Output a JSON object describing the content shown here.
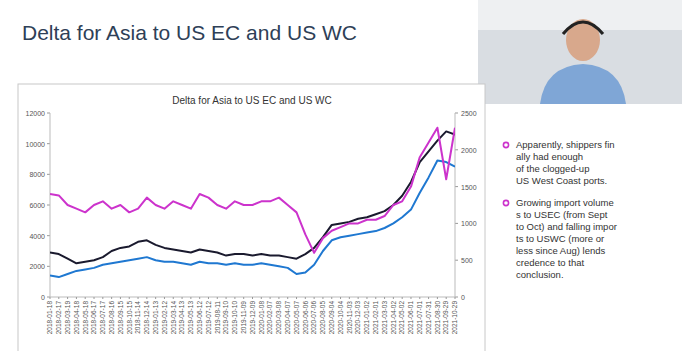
{
  "slide": {
    "title": "Delta for Asia to US EC and US WC",
    "bullets": [
      [
        "Apparently, shippers fin",
        "ally had enough",
        "of the clogged-up",
        "US West Coast ports."
      ],
      [
        "Growing import volume",
        "s to USEC (from Sept",
        "to Oct) and falling impor",
        "ts to USWC (more or",
        "less since Aug) lends",
        "credence to that",
        "conclusion."
      ]
    ]
  },
  "chart_data": {
    "type": "line",
    "title": "Delta for Asia to US EC and US WC",
    "categories": [
      "2018-01-18",
      "2018-02-17",
      "2018-03-19",
      "2018-04-18",
      "2018-05-18",
      "2018-06-17",
      "2018-07-17",
      "2018-08-16",
      "2018-09-15",
      "2018-10-15",
      "2018-11-14",
      "2018-12-14",
      "2019-01-13",
      "2019-02-12",
      "2019-03-14",
      "2019-04-13",
      "2019-05-13",
      "2019-06-12",
      "2019-07-12",
      "2019-08-11",
      "2019-09-10",
      "2019-10-10",
      "2019-11-09",
      "2019-12-09",
      "2020-01-08",
      "2020-02-07",
      "2020-03-08",
      "2020-04-07",
      "2020-05-07",
      "2020-06-06",
      "2020-07-06",
      "2020-08-05",
      "2020-09-04",
      "2020-10-04",
      "2020-11-03",
      "2020-12-03",
      "2021-01-02",
      "2021-02-01",
      "2021-03-03",
      "2021-04-02",
      "2021-05-02",
      "2021-06-01",
      "2021-07-01",
      "2021-07-31",
      "2021-08-30",
      "2021-09-29",
      "2021-10-29"
    ],
    "series": [
      {
        "color": "#1a1a2e",
        "values": [
          2900,
          2800,
          2500,
          2200,
          2300,
          2400,
          2600,
          3000,
          3200,
          3300,
          3600,
          3700,
          3400,
          3200,
          3100,
          3000,
          2900,
          3100,
          3000,
          2900,
          2700,
          2800,
          2800,
          2700,
          2800,
          2700,
          2700,
          2600,
          2500,
          2800,
          3200,
          3900,
          4700,
          4800,
          4900,
          5100,
          5200,
          5400,
          5600,
          6000,
          6600,
          7500,
          8800,
          9500,
          10200,
          10800,
          10600
        ]
      },
      {
        "color": "#1f78d1",
        "values": [
          1400,
          1300,
          1500,
          1700,
          1800,
          1900,
          2100,
          2200,
          2300,
          2400,
          2500,
          2600,
          2400,
          2300,
          2300,
          2200,
          2100,
          2300,
          2200,
          2200,
          2100,
          2200,
          2100,
          2100,
          2200,
          2100,
          2000,
          1900,
          1500,
          1600,
          2100,
          3000,
          3700,
          3900,
          4000,
          4100,
          4200,
          4300,
          4500,
          4800,
          5200,
          5700,
          6800,
          7800,
          8900,
          8800,
          8500
        ]
      },
      {
        "color": "#cc33cc",
        "axis": "y2",
        "values": [
          1400,
          1380,
          1250,
          1200,
          1150,
          1250,
          1300,
          1200,
          1250,
          1150,
          1200,
          1350,
          1250,
          1200,
          1300,
          1250,
          1200,
          1400,
          1350,
          1250,
          1200,
          1300,
          1250,
          1250,
          1300,
          1300,
          1350,
          1250,
          1150,
          850,
          600,
          800,
          900,
          950,
          1000,
          1000,
          1050,
          1050,
          1100,
          1250,
          1300,
          1500,
          1900,
          2100,
          2300,
          1600,
          2300
        ]
      }
    ],
    "ylim": [
      0,
      12000
    ],
    "yticks": [
      0,
      2000,
      4000,
      6000,
      8000,
      10000,
      12000
    ],
    "y2lim": [
      0,
      2500
    ],
    "y2ticks": [
      0,
      500,
      1000,
      1500,
      2000,
      2500
    ],
    "grid": false
  }
}
